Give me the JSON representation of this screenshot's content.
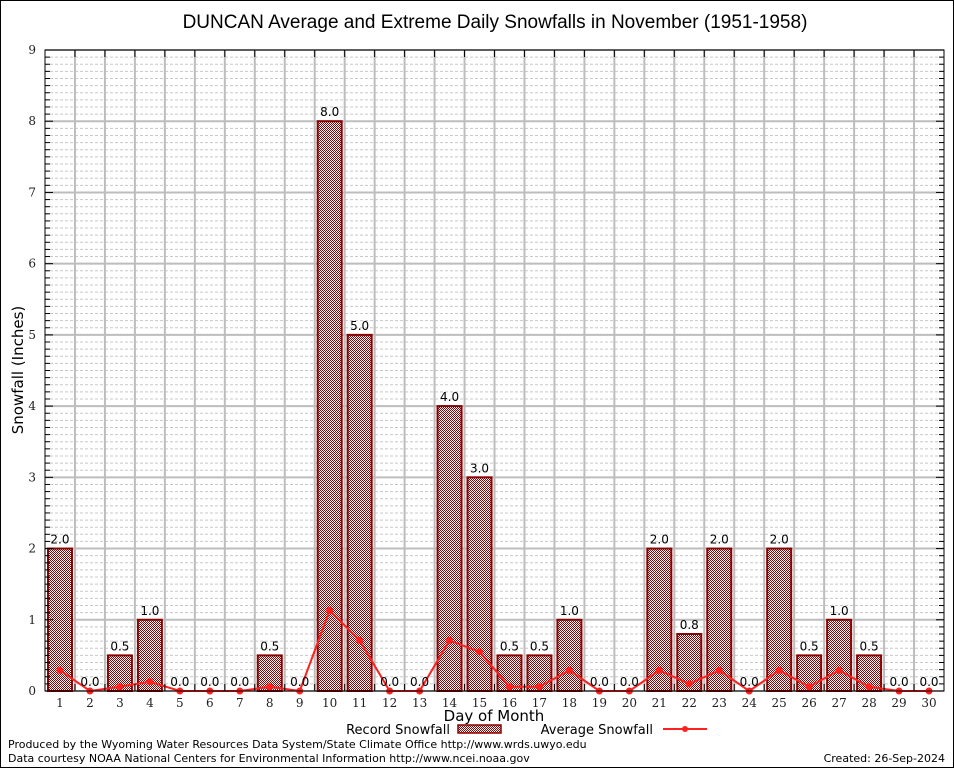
{
  "chart_data": {
    "type": "bar",
    "title": "DUNCAN Average and Extreme Daily Snowfalls in November (1951-1958)",
    "xlabel": "Day of Month",
    "ylabel": "Snowfall (Inches)",
    "ylim": [
      0,
      9
    ],
    "yticks": [
      "0",
      "1",
      "2",
      "3",
      "4",
      "5",
      "6",
      "7",
      "8",
      "9"
    ],
    "grid": true,
    "categories": [
      "1",
      "2",
      "3",
      "4",
      "5",
      "6",
      "7",
      "8",
      "9",
      "10",
      "11",
      "12",
      "13",
      "14",
      "15",
      "16",
      "17",
      "18",
      "19",
      "20",
      "21",
      "22",
      "23",
      "24",
      "25",
      "26",
      "27",
      "28",
      "29",
      "30"
    ],
    "series": [
      {
        "name": "Record Snowfall",
        "type": "bar",
        "color": "#8b0000",
        "values": [
          2.0,
          0.0,
          0.5,
          1.0,
          0.0,
          0.0,
          0.0,
          0.5,
          0.0,
          8.0,
          5.0,
          0.0,
          0.0,
          4.0,
          3.0,
          0.5,
          0.5,
          1.0,
          0.0,
          0.0,
          2.0,
          0.8,
          2.0,
          0.0,
          2.0,
          0.5,
          1.0,
          0.5,
          0.0,
          0.0
        ],
        "labels": [
          "2.0",
          "0.0",
          "0.5",
          "1.0",
          "0.0",
          "0.0",
          "0.0",
          "0.5",
          "0.0",
          "8.0",
          "5.0",
          "0.0",
          "0.0",
          "4.0",
          "3.0",
          "0.5",
          "0.5",
          "1.0",
          "0.0",
          "0.0",
          "2.0",
          "0.8",
          "2.0",
          "0.0",
          "2.0",
          "0.5",
          "1.0",
          "0.5",
          "0.0",
          "0.0"
        ]
      },
      {
        "name": "Average Snowfall",
        "type": "line",
        "color": "#ff2020",
        "values": [
          0.29,
          0.0,
          0.06,
          0.13,
          0.0,
          0.0,
          0.0,
          0.06,
          0.0,
          1.13,
          0.71,
          0.0,
          0.0,
          0.71,
          0.55,
          0.06,
          0.06,
          0.29,
          0.0,
          0.0,
          0.29,
          0.1,
          0.29,
          0.0,
          0.29,
          0.06,
          0.29,
          0.06,
          0.0,
          0.0
        ]
      }
    ],
    "legend": {
      "position": "bottom",
      "items": [
        "Record Snowfall",
        "Average Snowfall"
      ]
    }
  },
  "footer": {
    "line1": "Produced by the Wyoming Water Resources Data System/State Climate Office http://www.wrds.uwyo.edu",
    "line2": "Data courtesy NOAA National Centers for Environmental Information http://www.ncei.noaa.gov",
    "created": "Created: 26-Sep-2024"
  }
}
